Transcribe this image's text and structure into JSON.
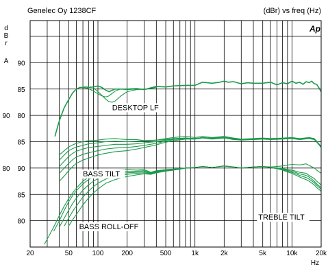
{
  "header": {
    "title": "Genelec Oy 1238CF",
    "units": "(dBr) vs freq (Hz)",
    "logo": "Ap"
  },
  "chart_data": {
    "type": "line",
    "title": "Genelec Oy 1238CF",
    "subtitle": "(dBr) vs freq (Hz)",
    "xlabel": "Hz",
    "ylabel_letters": [
      "d",
      "B",
      "r"
    ],
    "ylabel_extra": "A",
    "x_scale": "log",
    "xlim": [
      20,
      20000
    ],
    "x_ticks": [
      {
        "value": 20,
        "label": "20"
      },
      {
        "value": 50,
        "label": "50"
      },
      {
        "value": 100,
        "label": "100"
      },
      {
        "value": 200,
        "label": "200"
      },
      {
        "value": 500,
        "label": "500"
      },
      {
        "value": 1000,
        "label": "1k"
      },
      {
        "value": 2000,
        "label": "2k"
      },
      {
        "value": 5000,
        "label": "5k"
      },
      {
        "value": 10000,
        "label": "10k"
      },
      {
        "value": 20000,
        "label": "20k"
      }
    ],
    "ylim": [
      55,
      98
    ],
    "grid": true,
    "y_tick_labels": [
      {
        "value": 90,
        "left": "",
        "right": "90"
      },
      {
        "value": 85,
        "left": "",
        "right": "85"
      },
      {
        "value": 80,
        "left": "90",
        "right": "80"
      },
      {
        "value": 75,
        "left": "",
        "right": "85"
      },
      {
        "value": 70,
        "left": "80",
        "right": "90"
      },
      {
        "value": 65,
        "left": "",
        "right": "85"
      },
      {
        "value": 60,
        "left": "",
        "right": "80"
      }
    ],
    "annotations": [
      {
        "text": "DESKTOP LF",
        "x": 140,
        "y": 81
      },
      {
        "text": "BASS TILT",
        "x": 70,
        "y": 68.4
      },
      {
        "text": "BASS ROLL-OFF",
        "x": 64,
        "y": 58.4
      },
      {
        "text": "TREBLE TILT",
        "x": 4500,
        "y": 60.2
      }
    ],
    "line_color": "#1a9a4a",
    "series": [
      {
        "group": "desktop_lf",
        "x": [
          36,
          40,
          45,
          50,
          55,
          60,
          65,
          70,
          75,
          80,
          90,
          100,
          110,
          120,
          130,
          150,
          170,
          200,
          250,
          300,
          400,
          500,
          600,
          800,
          1000,
          1200,
          1500,
          1800,
          2000,
          2200,
          2500,
          3000,
          3500,
          4000,
          5000,
          6000,
          7000,
          8000,
          9000,
          10000,
          11000,
          12000,
          13000,
          14000,
          15000,
          16000,
          17000,
          18000,
          19000,
          20000
        ],
        "y": [
          76,
          79,
          81.5,
          83,
          84.3,
          85,
          85.3,
          85.3,
          85.4,
          85.3,
          85.4,
          85.6,
          85.3,
          84.8,
          84.5,
          85,
          85,
          85,
          85.1,
          84.9,
          85.5,
          85.4,
          85.6,
          85.7,
          85.7,
          86.3,
          86.1,
          86.3,
          86.5,
          86.3,
          86.4,
          86,
          86.2,
          86.1,
          86.1,
          86.3,
          85.8,
          86.2,
          86,
          86.5,
          86.1,
          86.3,
          85.9,
          86.4,
          86.2,
          86.5,
          86,
          85.9,
          85.2,
          84.5
        ]
      },
      {
        "group": "desktop_lf",
        "x": [
          70,
          80,
          90,
          100,
          110,
          120,
          130,
          150,
          170,
          200,
          250,
          300,
          350,
          400
        ],
        "y": [
          85.3,
          85.1,
          84.6,
          84.1,
          83.7,
          83.5,
          83.7,
          84.6,
          85,
          84.9,
          85,
          84.9,
          85.1,
          85.3
        ]
      },
      {
        "group": "desktop_lf",
        "x": [
          90,
          100,
          110,
          120,
          130,
          140,
          150,
          170,
          200,
          250,
          300
        ],
        "y": [
          85.2,
          84.5,
          83.8,
          83.1,
          82.6,
          82.5,
          82.7,
          83.6,
          84.5,
          84.9,
          85
        ]
      },
      {
        "group": "bass_tilt",
        "x": [
          40,
          45,
          50,
          55,
          60,
          70,
          80,
          90,
          100,
          120,
          150,
          200,
          250,
          300,
          400,
          500,
          600,
          800,
          1000,
          1200,
          1500,
          2000,
          2500,
          3000,
          4000,
          5000,
          6000,
          8000,
          10000,
          12000,
          15000,
          17000,
          18000,
          20000
        ],
        "y": [
          72.5,
          73.3,
          74,
          74.4,
          74.7,
          75,
          75.2,
          75.2,
          75.3,
          75.5,
          75.6,
          75.4,
          75.4,
          75.2,
          75.3,
          75.4,
          75.6,
          75.7,
          75.6,
          75.8,
          75.7,
          75.9,
          75.6,
          75.4,
          75.5,
          75.6,
          75.5,
          75.6,
          75.7,
          75.5,
          75.7,
          75.5,
          75,
          74
        ]
      },
      {
        "group": "bass_tilt",
        "x": [
          40,
          45,
          50,
          55,
          60,
          70,
          80,
          90,
          100,
          120,
          150,
          200,
          250,
          300,
          400,
          500,
          600,
          800,
          1000,
          1200,
          1500,
          2000,
          2500,
          3000,
          4000,
          5000,
          6000,
          8000,
          10000,
          12000,
          15000,
          17000,
          18000,
          20000
        ],
        "y": [
          71.5,
          72.5,
          73.3,
          73.7,
          74,
          74.3,
          74.6,
          74.7,
          74.8,
          75,
          75.1,
          75,
          75.1,
          75.1,
          75.3,
          75.6,
          75.8,
          76,
          75.8,
          76,
          75.8,
          76,
          75.7,
          75.5,
          75.6,
          75.7,
          75.6,
          75.7,
          75.8,
          75.6,
          75.8,
          75.6,
          75.1,
          74.1
        ]
      },
      {
        "group": "bass_tilt",
        "x": [
          40,
          45,
          50,
          55,
          60,
          70,
          80,
          90,
          100,
          120,
          150,
          200,
          250,
          300,
          400,
          500,
          600,
          800,
          1000,
          1200,
          1500,
          2000,
          2500,
          3000,
          4000,
          5000,
          6000,
          8000,
          10000,
          12000,
          15000,
          17000,
          18000,
          20000
        ],
        "y": [
          70.3,
          71.3,
          72.2,
          72.8,
          73.2,
          73.6,
          73.9,
          74,
          74.1,
          74.3,
          74.5,
          74.5,
          74.6,
          74.8,
          75,
          75.3,
          75.5,
          75.7,
          75.6,
          75.8,
          75.6,
          75.9,
          75.6,
          75.4,
          75.5,
          75.6,
          75.5,
          75.6,
          75.7,
          75.5,
          75.7,
          75.5,
          75,
          74
        ]
      },
      {
        "group": "bass_tilt",
        "x": [
          40,
          45,
          50,
          55,
          60,
          70,
          80,
          90,
          100,
          120,
          150,
          200,
          250,
          300,
          400,
          500,
          600,
          800,
          1000,
          1200,
          1500,
          2000,
          2500,
          3000,
          4000,
          5000,
          6000,
          8000,
          10000,
          12000,
          15000,
          17000,
          18000,
          20000
        ],
        "y": [
          69,
          70,
          70.9,
          71.6,
          72.1,
          72.6,
          72.9,
          73.1,
          73.3,
          73.6,
          73.8,
          73.9,
          74.1,
          74.3,
          74.7,
          75.1,
          75.4,
          75.6,
          75.6,
          75.8,
          75.6,
          75.8,
          75.5,
          75.4,
          75.5,
          75.6,
          75.5,
          75.6,
          75.7,
          75.5,
          75.7,
          75.5,
          75,
          74
        ]
      },
      {
        "group": "bass_tilt",
        "x": [
          40,
          45,
          50,
          55,
          60,
          70,
          80,
          90,
          100,
          120,
          150,
          200,
          250,
          300,
          400,
          500,
          600,
          800,
          1000,
          1200,
          1500,
          2000,
          2500,
          3000,
          4000,
          5000,
          6000,
          8000,
          10000,
          12000,
          15000,
          17000,
          18000,
          20000
        ],
        "y": [
          67.5,
          68.5,
          69.5,
          70.3,
          70.9,
          71.5,
          71.9,
          72.2,
          72.5,
          72.8,
          73.1,
          73.3,
          73.6,
          73.9,
          74.4,
          74.9,
          75.2,
          75.5,
          75.5,
          75.7,
          75.5,
          75.7,
          75.4,
          75.3,
          75.4,
          75.5,
          75.4,
          75.5,
          75.6,
          75.4,
          75.6,
          75.4,
          74.9,
          73.9
        ]
      },
      {
        "group": "bass_roll_off",
        "x": [
          28,
          30,
          35,
          40,
          45,
          50,
          55,
          60,
          70,
          80,
          90,
          100,
          120,
          150,
          200,
          250,
          300,
          350,
          400,
          500,
          600,
          700,
          800,
          1000,
          1200,
          1500,
          2000,
          2500,
          3000,
          4000,
          5000,
          6000,
          7000,
          8000,
          10000,
          12000,
          14000,
          15000,
          17000,
          18000,
          20000
        ],
        "y": [
          55.5,
          56.5,
          58.8,
          61,
          62.8,
          64.2,
          65.3,
          66.2,
          67.5,
          68.3,
          68.8,
          69.2,
          69.5,
          69.6,
          69.7,
          69.6,
          69.7,
          69.2,
          69.5,
          69.7,
          69.8,
          69.9,
          70,
          70.1,
          70.3,
          70.1,
          70.4,
          70.2,
          70,
          70.2,
          70.3,
          70.2,
          70.3,
          70.4,
          70.7,
          70.6,
          70.8,
          70.5,
          70,
          69.6,
          69
        ]
      },
      {
        "group": "bass_roll_off",
        "x": [
          35,
          40,
          45,
          50,
          55,
          60,
          70,
          80,
          90,
          100,
          120,
          150,
          200,
          250,
          300,
          350,
          400,
          500,
          600,
          700,
          800,
          1000,
          1200,
          1500,
          2000,
          2500,
          3000,
          4000,
          5000,
          6000,
          7000,
          8000,
          10000,
          12000,
          14000,
          15000,
          17000,
          18000,
          20000
        ],
        "y": [
          58,
          60,
          62,
          63.6,
          64.8,
          65.7,
          67,
          67.8,
          68.4,
          68.8,
          69.1,
          69.3,
          69.4,
          69.4,
          69.5,
          69.1,
          69.4,
          69.6,
          69.8,
          69.9,
          70,
          70.1,
          70.3,
          70.1,
          70.4,
          70.2,
          70,
          70.2,
          70.3,
          70.1,
          70,
          69.9,
          69.6,
          69.2,
          69,
          68.6,
          68,
          67.5,
          66.8
        ]
      },
      {
        "group": "bass_roll_off",
        "x": [
          40,
          45,
          50,
          55,
          60,
          70,
          80,
          90,
          100,
          120,
          150,
          200,
          250,
          300,
          350,
          400,
          500,
          600,
          700,
          800,
          1000,
          1200,
          1500,
          2000,
          2500,
          3000,
          4000,
          5000,
          6000,
          7000,
          8000,
          10000,
          12000,
          14000,
          15000,
          17000,
          18000,
          20000
        ],
        "y": [
          58.8,
          60.5,
          62,
          63.3,
          64.3,
          65.8,
          66.8,
          67.5,
          68,
          68.6,
          68.9,
          69.1,
          69.2,
          69.3,
          69,
          69.3,
          69.5,
          69.7,
          69.8,
          70,
          70.1,
          70.3,
          70.1,
          70.4,
          70.2,
          70,
          70.2,
          70.3,
          70.1,
          70,
          69.8,
          69.4,
          68.9,
          68.6,
          68.3,
          67.5,
          67,
          66.3
        ]
      },
      {
        "group": "bass_roll_off",
        "x": [
          45,
          50,
          55,
          60,
          70,
          80,
          90,
          100,
          120,
          150,
          200,
          250,
          300,
          350,
          400,
          500,
          600,
          700,
          800,
          1000,
          1200,
          1500,
          2000,
          2500,
          3000,
          4000,
          5000,
          6000,
          7000,
          8000,
          10000,
          12000,
          14000,
          15000,
          17000,
          18000,
          20000
        ],
        "y": [
          59,
          60.5,
          61.8,
          62.8,
          64.5,
          65.6,
          66.5,
          67.1,
          67.9,
          68.4,
          68.8,
          69,
          69.1,
          68.9,
          69.2,
          69.5,
          69.7,
          69.8,
          70,
          70.1,
          70.3,
          70.1,
          70.4,
          70.2,
          70,
          70.2,
          70.3,
          70.1,
          69.9,
          69.7,
          69.2,
          68.6,
          68.2,
          67.9,
          67.2,
          66.7,
          66
        ]
      },
      {
        "group": "bass_roll_off",
        "x": [
          50,
          55,
          60,
          70,
          80,
          90,
          100,
          120,
          150,
          200,
          250,
          300,
          350,
          400,
          500,
          600,
          700,
          800,
          1000,
          1200,
          1500,
          2000,
          2500,
          3000,
          4000,
          5000,
          6000,
          7000,
          8000,
          10000,
          12000,
          14000,
          15000,
          17000,
          18000,
          20000
        ],
        "y": [
          59,
          60.2,
          61.2,
          63,
          64.3,
          65.3,
          66,
          67.1,
          67.8,
          68.4,
          68.7,
          68.9,
          68.8,
          69.1,
          69.4,
          69.6,
          69.8,
          70,
          70.1,
          70.3,
          70.1,
          70.4,
          70.2,
          70,
          70.2,
          70.3,
          70.1,
          69.9,
          69.6,
          69,
          68.3,
          67.8,
          67.5,
          66.8,
          66.3,
          65.6
        ]
      }
    ]
  }
}
